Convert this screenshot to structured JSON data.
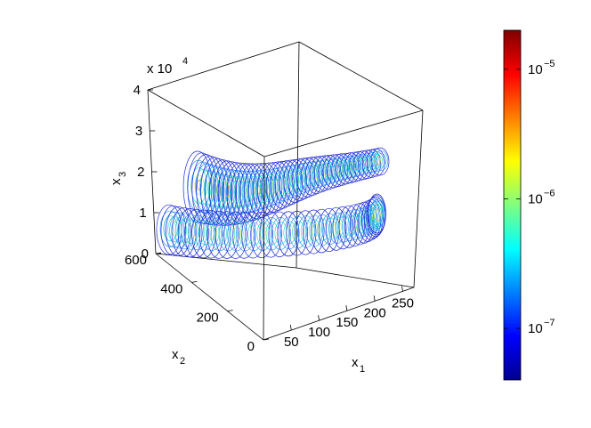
{
  "chart_data": {
    "type": "3d-contour",
    "x_axis": {
      "label_main": "x",
      "label_sub": "1",
      "ticks": [
        50,
        100,
        150,
        200,
        250
      ],
      "range": [
        0,
        270
      ]
    },
    "y_axis": {
      "label_main": "x",
      "label_sub": "2",
      "ticks": [
        0,
        200,
        400,
        600
      ],
      "range": [
        0,
        600
      ]
    },
    "z_axis": {
      "label_main": "x",
      "label_sub": "3",
      "ticks": [
        0,
        1,
        2,
        3,
        4
      ],
      "range": [
        0,
        4
      ],
      "exponent_text": "x 10",
      "exponent_power": "4"
    },
    "colorbar": {
      "colormap": "jet",
      "scale": "log",
      "range": [
        4e-08,
        2e-05
      ],
      "ticks": [
        {
          "value": 1e-07,
          "base": "10",
          "power": "−7"
        },
        {
          "value": 1e-06,
          "base": "10",
          "power": "−6"
        },
        {
          "value": 1e-05,
          "base": "10",
          "power": "−5"
        }
      ]
    },
    "grid": false,
    "box": true,
    "description_free": true
  }
}
